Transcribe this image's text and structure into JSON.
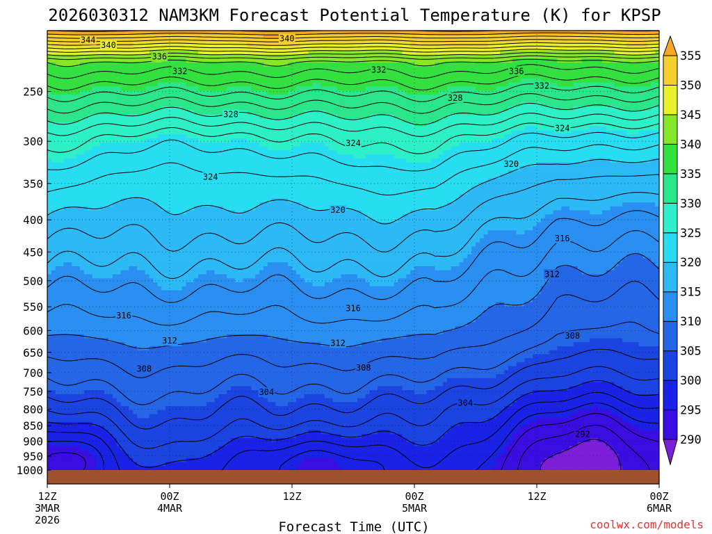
{
  "title": "2026030312 NAM3KM Forecast Potential Temperature (K) for KPSP",
  "credit": "coolwx.com/models",
  "chart_data": {
    "type": "heatmap",
    "title": "2026030312 NAM3KM Forecast Potential Temperature (K) for KPSP",
    "xlabel": "Forecast Time (UTC)",
    "ylabel": "",
    "x_ticks": [
      {
        "hour": 0,
        "lines": [
          "12Z",
          "3MAR",
          "2026"
        ]
      },
      {
        "hour": 12,
        "lines": [
          "00Z",
          "4MAR"
        ]
      },
      {
        "hour": 24,
        "lines": [
          "12Z"
        ]
      },
      {
        "hour": 36,
        "lines": [
          "00Z",
          "5MAR"
        ]
      },
      {
        "hour": 48,
        "lines": [
          "12Z"
        ]
      },
      {
        "hour": 60,
        "lines": [
          "00Z",
          "6MAR"
        ]
      }
    ],
    "xlim_hours": [
      0,
      60
    ],
    "y_pressure_levels": [
      250,
      300,
      350,
      400,
      450,
      500,
      550,
      600,
      650,
      700,
      750,
      800,
      850,
      900,
      950,
      1000
    ],
    "ylim_hPa": [
      1000,
      200
    ],
    "y_scale": "log",
    "grid": true,
    "surface_shading": "ground below surface",
    "colorbar": {
      "ticks": [
        290,
        295,
        300,
        305,
        310,
        315,
        320,
        325,
        330,
        335,
        340,
        345,
        350,
        355
      ],
      "bins": [
        {
          "from": 285,
          "to": 290,
          "color": "#7d1ed9"
        },
        {
          "from": 290,
          "to": 295,
          "color": "#3a0ee0"
        },
        {
          "from": 295,
          "to": 300,
          "color": "#1a22e6"
        },
        {
          "from": 300,
          "to": 305,
          "color": "#1c44e0"
        },
        {
          "from": 305,
          "to": 310,
          "color": "#2466e6"
        },
        {
          "from": 310,
          "to": 315,
          "color": "#2b8ff2"
        },
        {
          "from": 315,
          "to": 320,
          "color": "#2db8f6"
        },
        {
          "from": 320,
          "to": 325,
          "color": "#28dcf2"
        },
        {
          "from": 325,
          "to": 330,
          "color": "#2ef0c8"
        },
        {
          "from": 330,
          "to": 335,
          "color": "#2be58a"
        },
        {
          "from": 335,
          "to": 340,
          "color": "#33e040"
        },
        {
          "from": 340,
          "to": 345,
          "color": "#86e62a"
        },
        {
          "from": 345,
          "to": 350,
          "color": "#e8f02a"
        },
        {
          "from": 350,
          "to": 355,
          "color": "#f5cf2e"
        },
        {
          "from": 355,
          "to": 360,
          "color": "#f7a823"
        }
      ]
    },
    "contour_labels": [
      {
        "value": "344",
        "hour": 4.0,
        "p": 207
      },
      {
        "value": "340",
        "hour": 6.0,
        "p": 211
      },
      {
        "value": "340",
        "hour": 23.5,
        "p": 206
      },
      {
        "value": "336",
        "hour": 11.0,
        "p": 220
      },
      {
        "value": "332",
        "hour": 13.0,
        "p": 232
      },
      {
        "value": "332",
        "hour": 32.5,
        "p": 231
      },
      {
        "value": "336",
        "hour": 46.0,
        "p": 232
      },
      {
        "value": "332",
        "hour": 48.5,
        "p": 245
      },
      {
        "value": "328",
        "hour": 18.0,
        "p": 272
      },
      {
        "value": "328",
        "hour": 40.0,
        "p": 256
      },
      {
        "value": "324",
        "hour": 50.5,
        "p": 286
      },
      {
        "value": "324",
        "hour": 30.0,
        "p": 302
      },
      {
        "value": "324",
        "hour": 16.0,
        "p": 342
      },
      {
        "value": "320",
        "hour": 45.5,
        "p": 326
      },
      {
        "value": "320",
        "hour": 28.5,
        "p": 386
      },
      {
        "value": "316",
        "hour": 50.5,
        "p": 428
      },
      {
        "value": "312",
        "hour": 49.5,
        "p": 488
      },
      {
        "value": "316",
        "hour": 7.5,
        "p": 568
      },
      {
        "value": "316",
        "hour": 30.0,
        "p": 553
      },
      {
        "value": "312",
        "hour": 12.0,
        "p": 623
      },
      {
        "value": "312",
        "hour": 28.5,
        "p": 628
      },
      {
        "value": "308",
        "hour": 51.5,
        "p": 612
      },
      {
        "value": "308",
        "hour": 9.5,
        "p": 690
      },
      {
        "value": "308",
        "hour": 31.0,
        "p": 688
      },
      {
        "value": "304",
        "hour": 21.5,
        "p": 752
      },
      {
        "value": "304",
        "hour": 41.0,
        "p": 782
      },
      {
        "value": "292",
        "hour": 52.5,
        "p": 877
      }
    ]
  }
}
